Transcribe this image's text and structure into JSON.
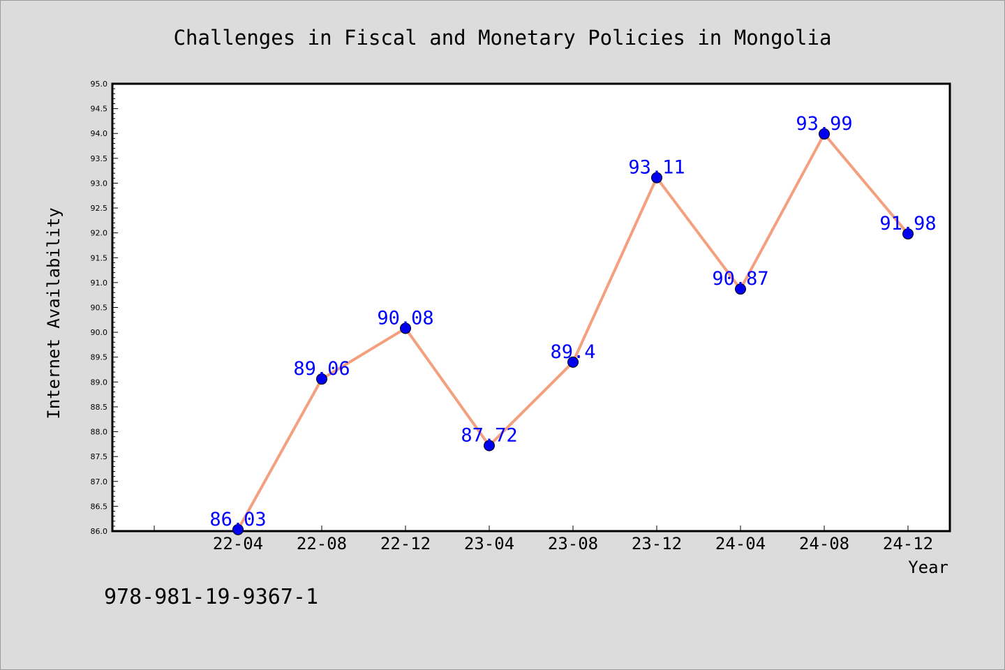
{
  "chart_data": {
    "type": "line",
    "title": "Challenges in Fiscal and Monetary Policies in Mongolia",
    "xlabel": "Year",
    "ylabel": "Internet Availability",
    "categories": [
      "22-04",
      "22-08",
      "22-12",
      "23-04",
      "23-08",
      "23-12",
      "24-04",
      "24-08",
      "24-12"
    ],
    "series": [
      {
        "values": [
          86.03,
          89.06,
          90.08,
          87.72,
          89.4,
          93.11,
          90.87,
          93.99,
          91.98
        ],
        "labels": [
          "86.03",
          "89.06",
          "90.08",
          "87.72",
          "89.4",
          "93.11",
          "90.87",
          "93.99",
          "91.98"
        ],
        "line_color": "#f4a07e",
        "marker_color": "#0000ee",
        "label_color": "#0000ff"
      }
    ],
    "ylim": [
      86.0,
      95.0
    ],
    "yticks": [
      "86.0",
      "86.5",
      "87.0",
      "87.5",
      "88.0",
      "88.5",
      "89.0",
      "89.5",
      "90.0",
      "90.5",
      "91.0",
      "91.5",
      "92.0",
      "92.5",
      "93.0",
      "93.5",
      "94.0",
      "94.5",
      "95.0"
    ],
    "grid": false,
    "legend": "none"
  },
  "footer_text": "978-981-19-9367-1",
  "colors": {
    "background": "#dcdcdc",
    "plot_background": "#ffffff",
    "axis": "#000000"
  }
}
